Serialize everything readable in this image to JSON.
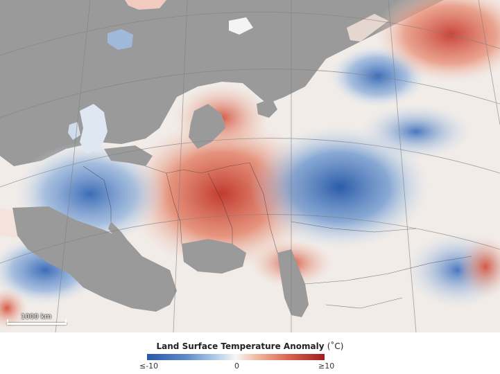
{
  "map": {
    "scale_bar_label": "1000 km",
    "colors": {
      "water": "#9a9a9a",
      "cold_extreme": "#2a57a8",
      "neutral": "#f6f6f6",
      "warm_extreme": "#a11b22"
    }
  },
  "legend": {
    "title": "Land Surface Temperature Anomaly",
    "unit": "(˚C)",
    "min_label": "≤-10",
    "mid_label": "0",
    "max_label": "≥10"
  }
}
